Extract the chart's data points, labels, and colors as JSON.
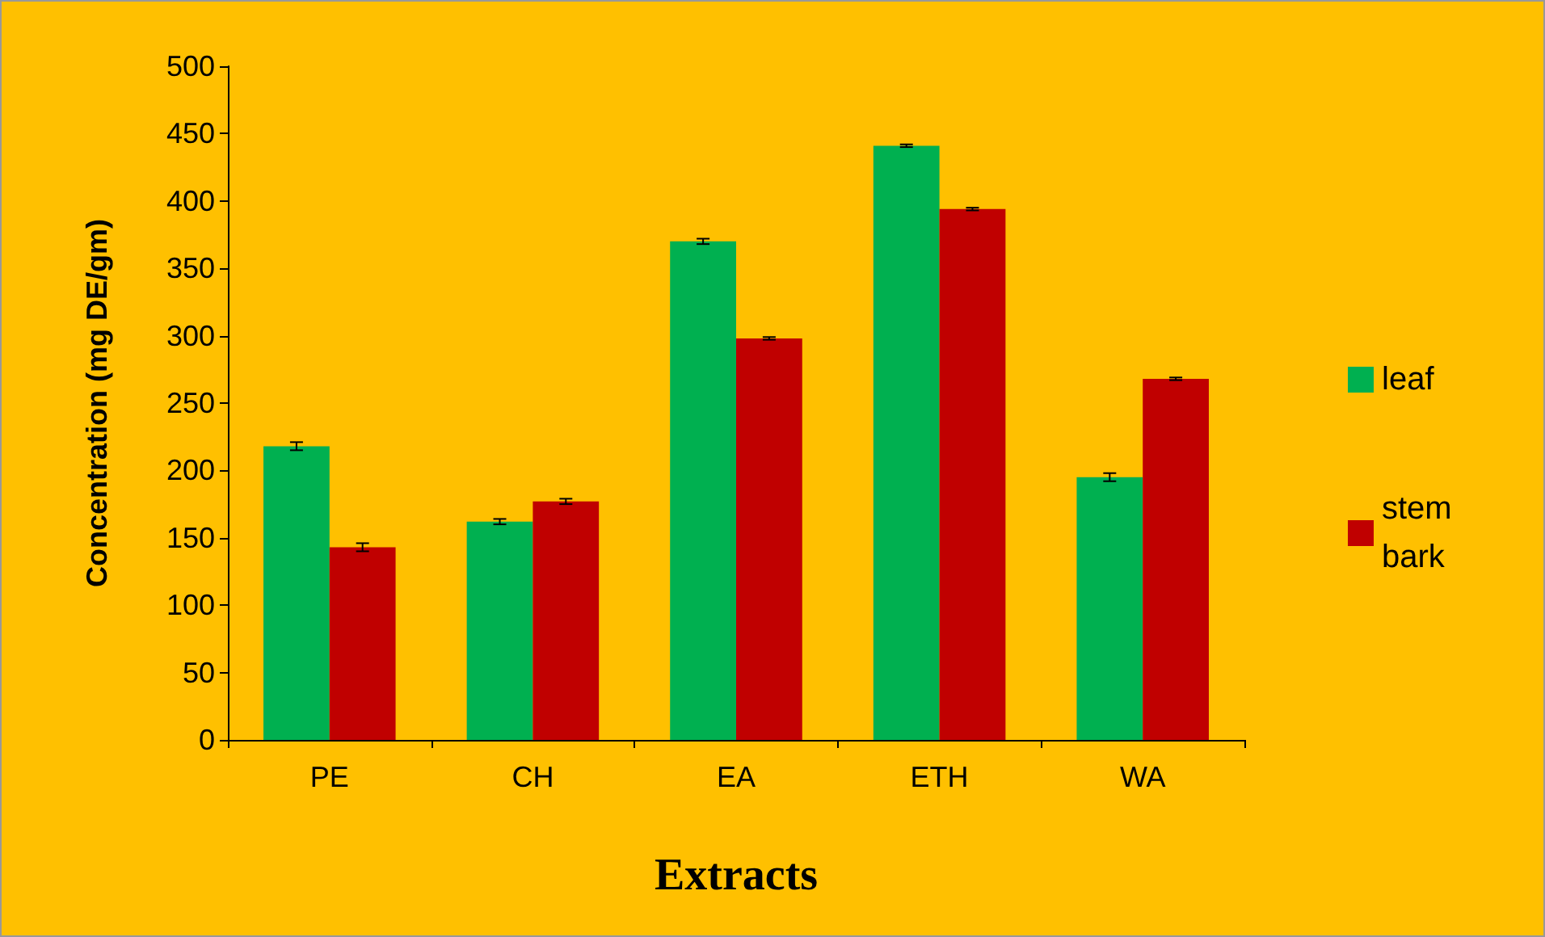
{
  "chart_data": {
    "type": "bar",
    "xlabel": "Extracts",
    "ylabel": "Concentration (mg DE/gm)",
    "categories": [
      "PE",
      "CH",
      "EA",
      "ETH",
      "WA"
    ],
    "series": [
      {
        "name": "leaf",
        "color": "#00b050",
        "values": [
          218,
          162,
          370,
          441,
          195
        ],
        "errors": [
          3,
          2,
          2,
          1,
          3
        ]
      },
      {
        "name": "stem bark",
        "color": "#c00000",
        "values": [
          143,
          177,
          298,
          394,
          268
        ],
        "errors": [
          3,
          2,
          1,
          1,
          1
        ]
      }
    ],
    "ylim": [
      0,
      500
    ],
    "yticks": [
      0,
      50,
      100,
      150,
      200,
      250,
      300,
      350,
      400,
      450,
      500
    ],
    "grid": false,
    "legend": "right"
  }
}
